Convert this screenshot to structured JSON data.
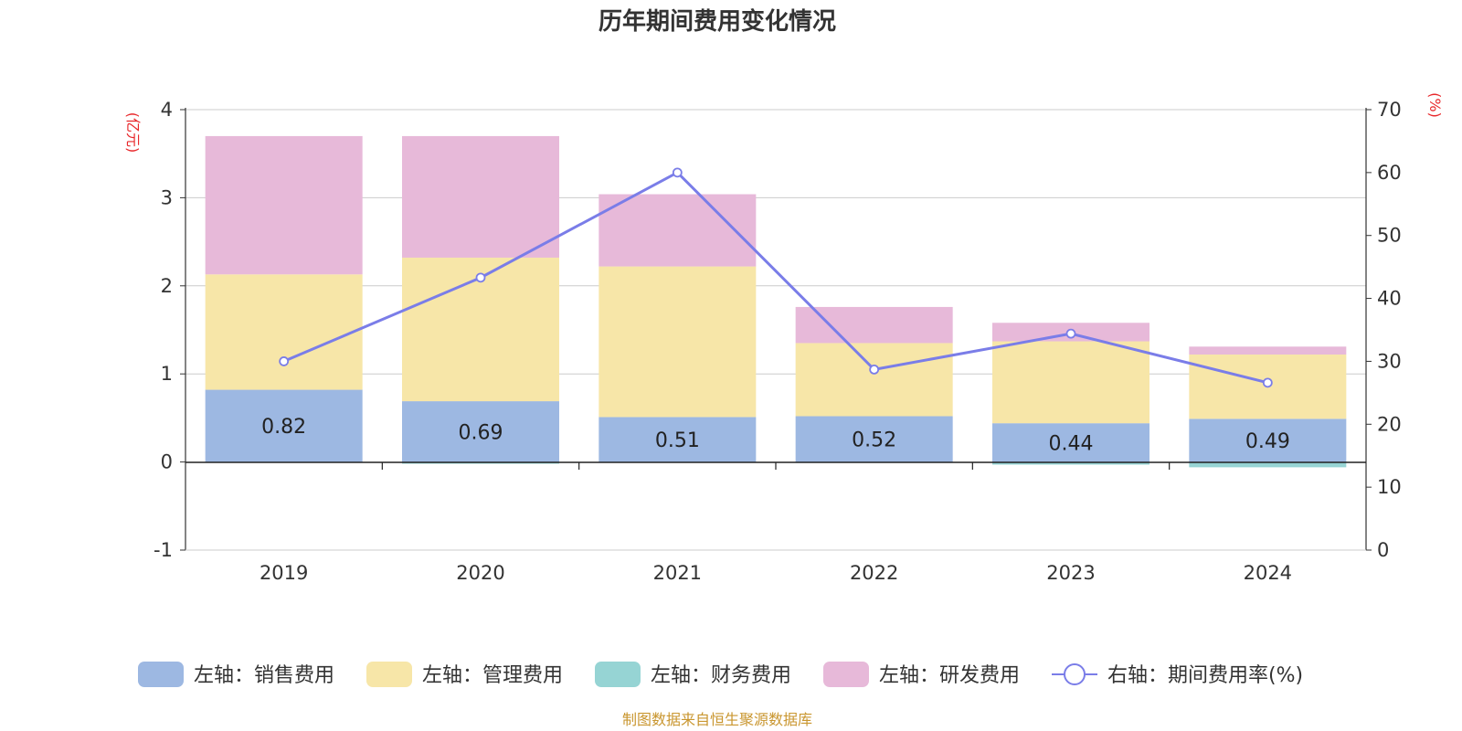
{
  "chart_data": {
    "type": "bar",
    "title": "历年期间费用变化情况",
    "categories": [
      "2019",
      "2020",
      "2021",
      "2022",
      "2023",
      "2024"
    ],
    "stacked": true,
    "left_axis": {
      "unit": "(亿元)",
      "ylim": [
        -1,
        4
      ],
      "ticks": [
        4,
        3,
        2,
        1,
        0,
        -1
      ]
    },
    "right_axis": {
      "unit": "(%)",
      "ylim": [
        0,
        70
      ],
      "ticks": [
        70,
        60,
        50,
        40,
        30,
        20,
        10,
        0
      ]
    },
    "series": [
      {
        "name": "左轴：销售费用",
        "type": "bar",
        "axis": "left",
        "color": "#9db8e2",
        "values": [
          0.82,
          0.69,
          0.51,
          0.52,
          0.44,
          0.49
        ],
        "show_labels": true
      },
      {
        "name": "左轴：管理费用",
        "type": "bar",
        "axis": "left",
        "color": "#f7e6a8",
        "values": [
          1.31,
          1.63,
          1.71,
          0.83,
          0.93,
          0.73
        ]
      },
      {
        "name": "左轴：财务费用",
        "type": "bar",
        "axis": "left",
        "color": "#96d4d4",
        "values": [
          0.0,
          -0.02,
          0.0,
          -0.01,
          -0.03,
          -0.06
        ]
      },
      {
        "name": "左轴：研发费用",
        "type": "bar",
        "axis": "left",
        "color": "#e7b9d9",
        "values": [
          1.57,
          1.38,
          0.82,
          0.41,
          0.21,
          0.09
        ]
      },
      {
        "name": "右轴：期间费用率(%)",
        "type": "line",
        "axis": "right",
        "color": "#7a7de8",
        "values": [
          30.0,
          43.3,
          60.0,
          28.7,
          34.4,
          26.6
        ]
      }
    ],
    "grid": true,
    "legend_position": "bottom"
  },
  "source_note": "制图数据来自恒生聚源数据库"
}
